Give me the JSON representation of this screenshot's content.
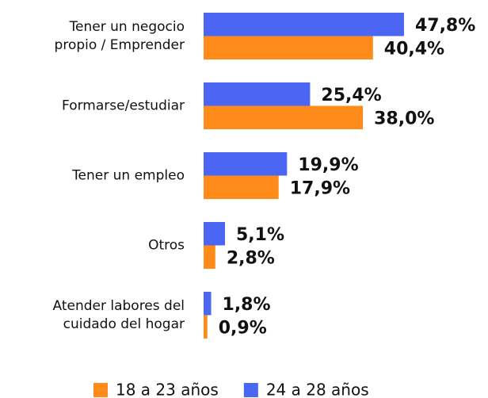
{
  "chart_data": {
    "type": "hbar",
    "categories": [
      [
        "Tener un negocio",
        "propio / Emprender"
      ],
      [
        "Formarse/estudiar"
      ],
      [
        "Tener un empleo"
      ],
      [
        "Otros"
      ],
      [
        "Atender labores del",
        "cuidado del hogar"
      ]
    ],
    "series": [
      {
        "name": "18 a 23 años",
        "color": "#ff8c1a",
        "values": [
          40.4,
          38.0,
          17.9,
          2.8,
          0.9
        ],
        "value_labels": [
          "40,4%",
          "38,0%",
          "17,9%",
          "2,8%",
          "0,9%"
        ]
      },
      {
        "name": "24 a 28 años",
        "color": "#4b66f2",
        "values": [
          47.8,
          25.4,
          19.9,
          5.1,
          1.8
        ],
        "value_labels": [
          "47,8%",
          "25,4%",
          "19,9%",
          "5,1%",
          "1,8%"
        ]
      }
    ],
    "xlim": [
      0,
      50
    ],
    "legend": "bottom"
  }
}
